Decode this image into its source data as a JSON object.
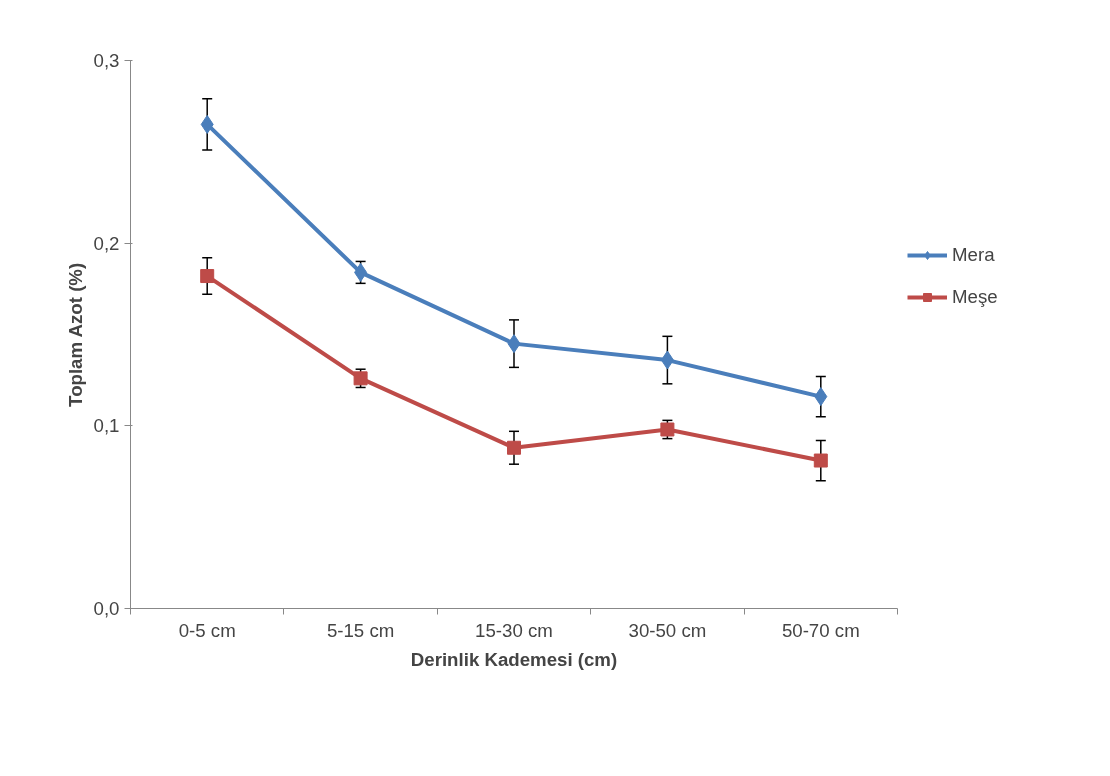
{
  "chart_data": {
    "type": "line",
    "xlabel": "Derinlik Kademesi (cm)",
    "ylabel": "Toplam Azot (%)",
    "categories": [
      "0-5 cm",
      "5-15 cm",
      "15-30 cm",
      "30-50 cm",
      "50-70 cm"
    ],
    "series": [
      {
        "name": "Mera",
        "color": "#4a7ebb",
        "marker": "diamond",
        "values": [
          0.265,
          0.184,
          0.145,
          0.136,
          0.116
        ],
        "errors": [
          0.014,
          0.006,
          0.013,
          0.013,
          0.011
        ]
      },
      {
        "name": "Meşe",
        "color": "#be4b48",
        "marker": "square",
        "values": [
          0.182,
          0.126,
          0.088,
          0.098,
          0.081
        ],
        "errors": [
          0.01,
          0.005,
          0.009,
          0.005,
          0.011
        ]
      }
    ],
    "ylim": [
      0,
      0.3
    ],
    "yticks": [
      {
        "value": 0,
        "label": "0,0"
      },
      {
        "value": 0.1,
        "label": "0,1"
      },
      {
        "value": 0.2,
        "label": "0,2"
      },
      {
        "value": 0.3,
        "label": "0,3"
      }
    ],
    "grid": false,
    "legend": "right"
  }
}
